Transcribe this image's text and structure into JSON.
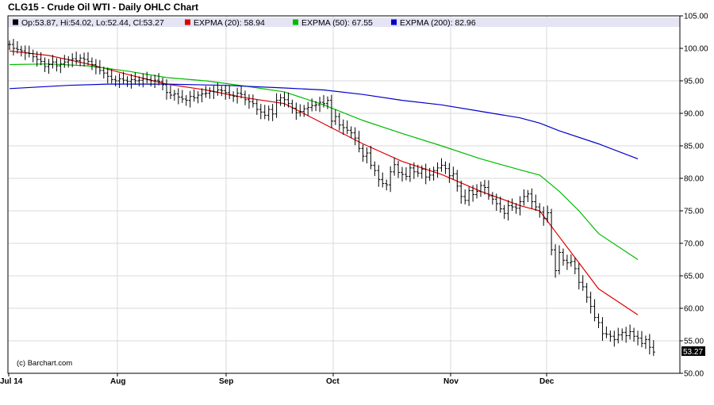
{
  "chart_data": {
    "type": "line",
    "title": "CLG15 - Crude Oil WTI - Daily OHLC Chart",
    "credit": "(c) Barchart.com",
    "ohlc_summary": {
      "text": "Op:53.87, Hi:54.02, Lo:52.44, Cl:53.27"
    },
    "last_value_label": "53.27",
    "ylim": [
      50,
      105
    ],
    "y_ticks": [
      "105.00",
      "100.00",
      "95.00",
      "90.00",
      "85.00",
      "80.00",
      "75.00",
      "70.00",
      "65.00",
      "60.00",
      "55.00",
      "50.00"
    ],
    "x_ticks": [
      "Jul 14",
      "Aug",
      "Sep",
      "Oct",
      "Nov",
      "Dec"
    ],
    "grid": true,
    "legend_position": "top-left",
    "colors": {
      "ohlc": "#000000",
      "ema20": "#dd0000",
      "ema50": "#00bb00",
      "ema200": "#0000cc",
      "grid": "#d8d8d8",
      "legend_bg": "#e4e4f4"
    },
    "series": [
      {
        "name": "EXPMA (20): 58.94",
        "key": "ema20",
        "color": "#dd0000",
        "points": [
          [
            0,
            99.6
          ],
          [
            10,
            98.9
          ],
          [
            20,
            97.6
          ],
          [
            30,
            96.0
          ],
          [
            40,
            94.5
          ],
          [
            50,
            93.6
          ],
          [
            60,
            92.4
          ],
          [
            70,
            91.5
          ],
          [
            80,
            88.4
          ],
          [
            90,
            85.3
          ],
          [
            100,
            82.6
          ],
          [
            110,
            80.6
          ],
          [
            120,
            78.0
          ],
          [
            130,
            75.8
          ],
          [
            135,
            75.0
          ],
          [
            140,
            71.0
          ],
          [
            145,
            67.0
          ],
          [
            150,
            63.0
          ],
          [
            160,
            59.0
          ]
        ]
      },
      {
        "name": "EXPMA (50): 67.55",
        "key": "ema50",
        "color": "#00bb00",
        "points": [
          [
            0,
            97.5
          ],
          [
            10,
            97.6
          ],
          [
            20,
            97.3
          ],
          [
            30,
            96.5
          ],
          [
            40,
            95.5
          ],
          [
            50,
            95.0
          ],
          [
            60,
            94.2
          ],
          [
            70,
            93.3
          ],
          [
            80,
            91.3
          ],
          [
            90,
            88.9
          ],
          [
            100,
            86.9
          ],
          [
            110,
            85.0
          ],
          [
            120,
            83.0
          ],
          [
            130,
            81.3
          ],
          [
            135,
            80.5
          ],
          [
            140,
            78.0
          ],
          [
            145,
            75.0
          ],
          [
            150,
            71.5
          ],
          [
            160,
            67.5
          ]
        ]
      },
      {
        "name": "EXPMA (200): 82.96",
        "key": "ema200",
        "color": "#0000cc",
        "points": [
          [
            0,
            93.8
          ],
          [
            15,
            94.3
          ],
          [
            25,
            94.5
          ],
          [
            40,
            94.5
          ],
          [
            55,
            94.3
          ],
          [
            70,
            93.9
          ],
          [
            80,
            93.6
          ],
          [
            90,
            92.9
          ],
          [
            100,
            92.0
          ],
          [
            110,
            91.3
          ],
          [
            120,
            90.3
          ],
          [
            130,
            89.3
          ],
          [
            135,
            88.5
          ],
          [
            140,
            87.3
          ],
          [
            150,
            85.3
          ],
          [
            160,
            83.0
          ]
        ]
      }
    ],
    "ohlc": [
      [
        0,
        100.6
      ],
      [
        1,
        100.0
      ],
      [
        2,
        99.8
      ],
      [
        3,
        99.6
      ],
      [
        4,
        99.3
      ],
      [
        5,
        99.2
      ],
      [
        6,
        98.7
      ],
      [
        7,
        98.3
      ],
      [
        8,
        98.0
      ],
      [
        9,
        97.2
      ],
      [
        10,
        97.5
      ],
      [
        11,
        97.9
      ],
      [
        12,
        97.3
      ],
      [
        13,
        97.6
      ],
      [
        14,
        97.9
      ],
      [
        15,
        98.2
      ],
      [
        16,
        98.4
      ],
      [
        17,
        98.1
      ],
      [
        18,
        98.5
      ],
      [
        19,
        98.3
      ],
      [
        20,
        98.0
      ],
      [
        21,
        97.5
      ],
      [
        22,
        97.1
      ],
      [
        23,
        96.6
      ],
      [
        24,
        96.2
      ],
      [
        25,
        95.7
      ],
      [
        26,
        95.2
      ],
      [
        27,
        95.0
      ],
      [
        28,
        95.3
      ],
      [
        29,
        95.1
      ],
      [
        30,
        94.9
      ],
      [
        31,
        95.2
      ],
      [
        32,
        95.0
      ],
      [
        33,
        95.1
      ],
      [
        34,
        95.3
      ],
      [
        35,
        95.2
      ],
      [
        36,
        95.0
      ],
      [
        37,
        95.1
      ],
      [
        38,
        94.9
      ],
      [
        39,
        94.4
      ],
      [
        40,
        93.2
      ],
      [
        41,
        92.8
      ],
      [
        42,
        93.0
      ],
      [
        43,
        92.5
      ],
      [
        44,
        92.2
      ],
      [
        45,
        92.0
      ],
      [
        46,
        92.6
      ],
      [
        47,
        92.4
      ],
      [
        48,
        92.8
      ],
      [
        49,
        93.0
      ],
      [
        50,
        93.1
      ],
      [
        51,
        93.4
      ],
      [
        52,
        93.3
      ],
      [
        53,
        93.6
      ],
      [
        54,
        93.5
      ],
      [
        55,
        93.2
      ],
      [
        56,
        92.8
      ],
      [
        57,
        92.6
      ],
      [
        58,
        93.1
      ],
      [
        59,
        92.9
      ],
      [
        60,
        92.1
      ],
      [
        61,
        91.8
      ],
      [
        62,
        91.5
      ],
      [
        63,
        90.6
      ],
      [
        64,
        90.2
      ],
      [
        65,
        89.7
      ],
      [
        66,
        90.6
      ],
      [
        67,
        89.9
      ],
      [
        68,
        92.0
      ],
      [
        69,
        92.4
      ],
      [
        70,
        92.1
      ],
      [
        71,
        91.5
      ],
      [
        72,
        90.8
      ],
      [
        73,
        90.1
      ],
      [
        74,
        90.3
      ],
      [
        75,
        90.7
      ],
      [
        76,
        90.9
      ],
      [
        77,
        91.2
      ],
      [
        78,
        91.3
      ],
      [
        79,
        91.7
      ],
      [
        80,
        91.5
      ],
      [
        81,
        92.0
      ],
      [
        82,
        88.8
      ],
      [
        83,
        89.5
      ],
      [
        84,
        88.2
      ],
      [
        85,
        87.8
      ],
      [
        86,
        87.4
      ],
      [
        87,
        87.0
      ],
      [
        88,
        86.2
      ],
      [
        89,
        84.6
      ],
      [
        90,
        83.4
      ],
      [
        91,
        83.9
      ],
      [
        92,
        82.0
      ],
      [
        93,
        81.2
      ],
      [
        94,
        79.8
      ],
      [
        95,
        79.2
      ],
      [
        96,
        79.0
      ],
      [
        97,
        81.0
      ],
      [
        98,
        82.1
      ],
      [
        99,
        80.9
      ],
      [
        100,
        80.6
      ],
      [
        101,
        80.3
      ],
      [
        102,
        81.6
      ],
      [
        103,
        81.0
      ],
      [
        104,
        80.8
      ],
      [
        105,
        81.4
      ],
      [
        106,
        80.2
      ],
      [
        107,
        80.5
      ],
      [
        108,
        81.2
      ],
      [
        109,
        81.6
      ],
      [
        110,
        82.0
      ],
      [
        111,
        81.5
      ],
      [
        112,
        80.4
      ],
      [
        113,
        80.7
      ],
      [
        114,
        78.8
      ],
      [
        115,
        77.2
      ],
      [
        116,
        76.6
      ],
      [
        117,
        78.1
      ],
      [
        118,
        77.5
      ],
      [
        119,
        78.0
      ],
      [
        120,
        78.9
      ],
      [
        121,
        78.6
      ],
      [
        122,
        77.3
      ],
      [
        123,
        76.8
      ],
      [
        124,
        76.1
      ],
      [
        125,
        75.3
      ],
      [
        126,
        74.6
      ],
      [
        127,
        75.8
      ],
      [
        128,
        75.6
      ],
      [
        129,
        75.4
      ],
      [
        130,
        76.4
      ],
      [
        131,
        77.2
      ],
      [
        132,
        77.6
      ],
      [
        133,
        76.4
      ],
      [
        134,
        75.6
      ],
      [
        135,
        74.8
      ],
      [
        136,
        73.8
      ],
      [
        137,
        74.7
      ],
      [
        138,
        69.0
      ],
      [
        139,
        65.8
      ],
      [
        140,
        68.6
      ],
      [
        141,
        67.4
      ],
      [
        142,
        67.0
      ],
      [
        143,
        67.2
      ],
      [
        144,
        66.1
      ],
      [
        145,
        64.0
      ],
      [
        146,
        63.3
      ],
      [
        147,
        61.7
      ],
      [
        148,
        60.3
      ],
      [
        149,
        58.6
      ],
      [
        150,
        57.8
      ],
      [
        151,
        56.1
      ],
      [
        152,
        56.0
      ],
      [
        153,
        55.7
      ],
      [
        154,
        55.2
      ],
      [
        155,
        55.9
      ],
      [
        156,
        56.3
      ],
      [
        157,
        55.8
      ],
      [
        158,
        56.4
      ],
      [
        159,
        55.7
      ],
      [
        160,
        55.4
      ],
      [
        161,
        54.6
      ],
      [
        162,
        55.2
      ],
      [
        163,
        54.0
      ],
      [
        164,
        53.27
      ]
    ]
  }
}
